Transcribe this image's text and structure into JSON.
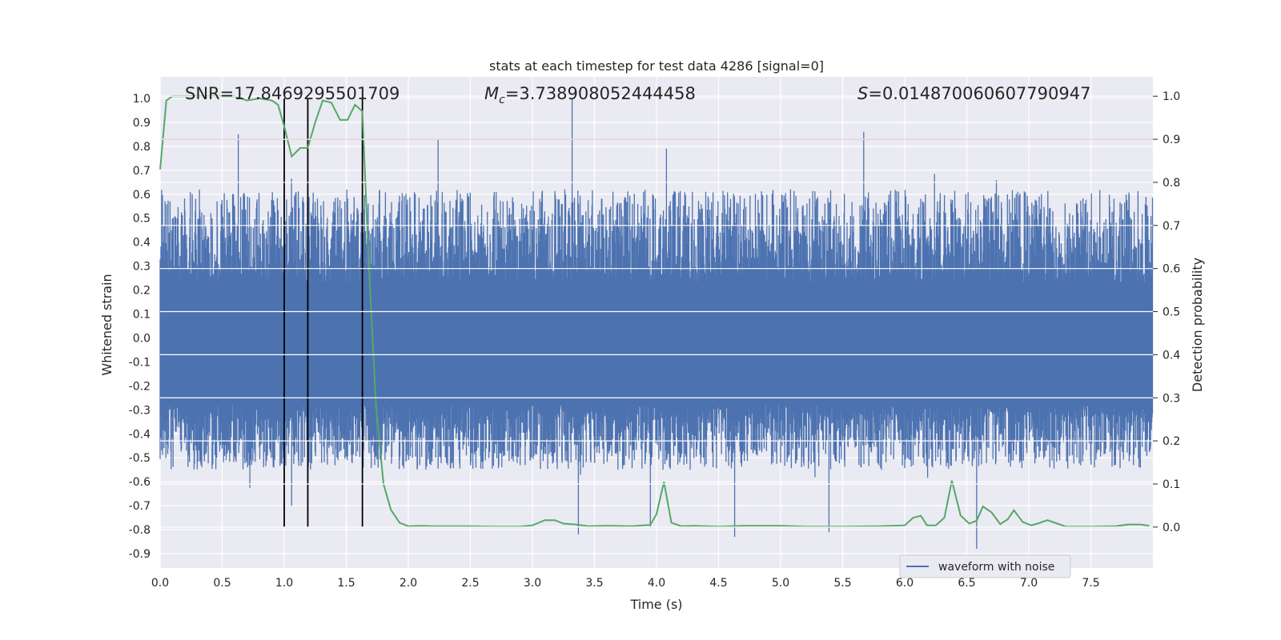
{
  "chart_data": {
    "type": "line",
    "title": "stats at each timestep for test data 4286 [signal=0]",
    "xlabel": "Time (s)",
    "ylabel_left": "Whitened strain",
    "ylabel_right": "Detection probability",
    "xlim": [
      0.0,
      8.0
    ],
    "ylim_left": [
      -0.96,
      1.09
    ],
    "ylim_right": [
      -0.095,
      1.045
    ],
    "x_ticks": [
      "0.0",
      "0.5",
      "1.0",
      "1.5",
      "2.0",
      "2.5",
      "3.0",
      "3.5",
      "4.0",
      "4.5",
      "5.0",
      "5.5",
      "6.0",
      "6.5",
      "7.0",
      "7.5"
    ],
    "y_ticks_left": [
      "1.0",
      "0.9",
      "0.8",
      "0.7",
      "0.6",
      "0.5",
      "0.4",
      "0.3",
      "0.2",
      "0.1",
      "0.0",
      "-0.1",
      "-0.2",
      "-0.3",
      "-0.4",
      "-0.5",
      "-0.6",
      "-0.7",
      "-0.8",
      "-0.9"
    ],
    "y_ticks_right": [
      "1.0",
      "0.9",
      "0.8",
      "0.7",
      "0.6",
      "0.5",
      "0.4",
      "0.3",
      "0.2",
      "0.1",
      "0.0"
    ],
    "annotations": {
      "snr": "SNR=17.8469295501709",
      "mc_symbol": "M",
      "mc_sub": "c",
      "mc_value": "=3.738908052444458",
      "s_symbol": "S",
      "s_value": "=0.014870060607790947"
    },
    "threshold_line": {
      "value": 0.9,
      "axis": "right",
      "color": "#b22222"
    },
    "vertical_lines": {
      "x": [
        1.0,
        1.19,
        1.63
      ],
      "color": "#000000"
    },
    "legend": {
      "label": "waveform with noise",
      "placement": "lower right"
    },
    "series": [
      {
        "name": "waveform with noise",
        "axis": "left",
        "color": "#4c72b0",
        "kind": "noise",
        "x_range": [
          0.0,
          8.0
        ],
        "core_band": [
          -0.28,
          0.23
        ],
        "typical_extent": [
          -0.55,
          0.62
        ],
        "peaks": [
          {
            "x": 0.63,
            "y": 0.85
          },
          {
            "x": 2.24,
            "y": 0.83
          },
          {
            "x": 3.32,
            "y": 1.0
          },
          {
            "x": 4.08,
            "y": 0.79
          },
          {
            "x": 5.67,
            "y": 0.86
          },
          {
            "x": 1.06,
            "y": -0.7
          },
          {
            "x": 3.37,
            "y": -0.82
          },
          {
            "x": 3.95,
            "y": -0.79
          },
          {
            "x": 4.63,
            "y": -0.83
          },
          {
            "x": 5.39,
            "y": -0.81
          },
          {
            "x": 6.58,
            "y": -0.88
          }
        ]
      },
      {
        "name": "detection probability",
        "axis": "right",
        "color": "#55a868",
        "kind": "line",
        "points": [
          [
            0.0,
            0.83
          ],
          [
            0.05,
            0.99
          ],
          [
            0.1,
            1.0
          ],
          [
            0.2,
            1.0
          ],
          [
            0.3,
            1.0
          ],
          [
            0.4,
            1.0
          ],
          [
            0.5,
            1.0
          ],
          [
            0.6,
            1.0
          ],
          [
            0.7,
            0.99
          ],
          [
            0.8,
            0.995
          ],
          [
            0.9,
            0.99
          ],
          [
            0.95,
            0.98
          ],
          [
            1.0,
            0.93
          ],
          [
            1.06,
            0.86
          ],
          [
            1.13,
            0.88
          ],
          [
            1.19,
            0.88
          ],
          [
            1.25,
            0.94
          ],
          [
            1.31,
            0.99
          ],
          [
            1.38,
            0.985
          ],
          [
            1.45,
            0.945
          ],
          [
            1.51,
            0.945
          ],
          [
            1.57,
            0.98
          ],
          [
            1.63,
            0.965
          ],
          [
            1.68,
            0.62
          ],
          [
            1.74,
            0.28
          ],
          [
            1.8,
            0.1
          ],
          [
            1.86,
            0.04
          ],
          [
            1.93,
            0.01
          ],
          [
            2.0,
            0.002
          ],
          [
            2.1,
            0.003
          ],
          [
            2.2,
            0.002
          ],
          [
            2.3,
            0.002
          ],
          [
            2.5,
            0.002
          ],
          [
            2.7,
            0.001
          ],
          [
            2.9,
            0.001
          ],
          [
            3.0,
            0.004
          ],
          [
            3.1,
            0.016
          ],
          [
            3.18,
            0.016
          ],
          [
            3.25,
            0.008
          ],
          [
            3.35,
            0.006
          ],
          [
            3.45,
            0.002
          ],
          [
            3.6,
            0.003
          ],
          [
            3.8,
            0.002
          ],
          [
            3.95,
            0.005
          ],
          [
            4.0,
            0.03
          ],
          [
            4.06,
            0.105
          ],
          [
            4.12,
            0.01
          ],
          [
            4.2,
            0.002
          ],
          [
            4.3,
            0.003
          ],
          [
            4.5,
            0.001
          ],
          [
            4.7,
            0.003
          ],
          [
            5.0,
            0.003
          ],
          [
            5.2,
            0.001
          ],
          [
            5.5,
            0.001
          ],
          [
            5.8,
            0.002
          ],
          [
            6.0,
            0.004
          ],
          [
            6.07,
            0.022
          ],
          [
            6.13,
            0.026
          ],
          [
            6.18,
            0.004
          ],
          [
            6.25,
            0.004
          ],
          [
            6.32,
            0.022
          ],
          [
            6.38,
            0.108
          ],
          [
            6.45,
            0.027
          ],
          [
            6.52,
            0.008
          ],
          [
            6.58,
            0.015
          ],
          [
            6.63,
            0.048
          ],
          [
            6.7,
            0.034
          ],
          [
            6.77,
            0.007
          ],
          [
            6.83,
            0.018
          ],
          [
            6.88,
            0.039
          ],
          [
            6.95,
            0.012
          ],
          [
            7.02,
            0.004
          ],
          [
            7.08,
            0.009
          ],
          [
            7.15,
            0.016
          ],
          [
            7.22,
            0.009
          ],
          [
            7.3,
            0.001
          ],
          [
            7.5,
            0.001
          ],
          [
            7.7,
            0.002
          ],
          [
            7.8,
            0.006
          ],
          [
            7.9,
            0.006
          ],
          [
            7.97,
            0.003
          ]
        ]
      }
    ]
  }
}
